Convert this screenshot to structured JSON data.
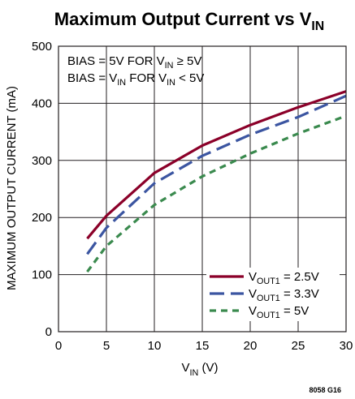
{
  "chart_data": {
    "type": "line",
    "title": "Maximum Output Current vs V",
    "title_subscript": "IN",
    "xlabel": "V",
    "xlabel_subscript": "IN",
    "xlabel_suffix": " (V)",
    "ylabel": "MAXIMUM OUTPUT CURRENT (mA)",
    "xlim": [
      0,
      30
    ],
    "ylim": [
      0,
      500
    ],
    "xticks": [
      0,
      5,
      10,
      15,
      20,
      25,
      30
    ],
    "yticks": [
      0,
      100,
      200,
      300,
      400,
      500
    ],
    "grid": true,
    "legend_position": "bottom-right",
    "conditions": [
      {
        "a": "BIAS = 5V FOR V",
        "sub": "IN",
        "b": " ≥ 5V"
      },
      {
        "a": "BIAS = V",
        "sub": "IN",
        "b": " FOR V",
        "sub2": "IN",
        "c": " < 5V"
      }
    ],
    "series": [
      {
        "name": "= 2.5V",
        "label_prefix": "V",
        "label_subscript": "OUT1",
        "color": "#8b0029",
        "dash": "solid",
        "x": [
          3,
          5,
          10,
          15,
          20,
          25,
          30
        ],
        "values": [
          163,
          203,
          278,
          326,
          362,
          393,
          421
        ]
      },
      {
        "name": "= 3.3V",
        "label_prefix": "V",
        "label_subscript": "OUT1",
        "color": "#3b55a1",
        "dash": "long",
        "x": [
          3,
          5,
          10,
          15,
          20,
          25,
          30
        ],
        "values": [
          136,
          182,
          260,
          308,
          345,
          376,
          413
        ]
      },
      {
        "name": "= 5V",
        "label_prefix": "V",
        "label_subscript": "OUT1",
        "color": "#3a8a4e",
        "dash": "short",
        "x": [
          3,
          5,
          10,
          15,
          20,
          25,
          30
        ],
        "values": [
          105,
          150,
          222,
          272,
          312,
          347,
          378
        ]
      }
    ],
    "figure_id": "8058 G16"
  }
}
